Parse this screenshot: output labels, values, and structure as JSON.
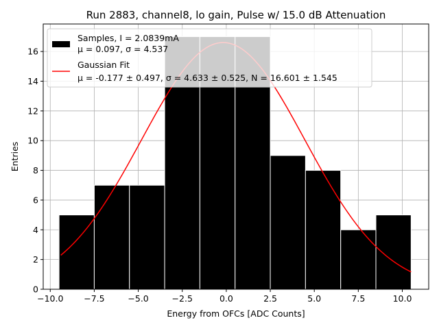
{
  "chart_data": {
    "type": "bar",
    "title": "Run 2883, channel8, lo gain, Pulse w/ 15.0 dB Attenuation",
    "xlabel": "Energy from OFCs [ADC Counts]",
    "ylabel": "Entries",
    "xlim": [
      -10.4,
      11.5
    ],
    "ylim": [
      0,
      17.85
    ],
    "xticks": [
      -10,
      -7.5,
      -5,
      -2.5,
      0,
      2.5,
      5,
      7.5,
      10
    ],
    "xtick_labels": [
      "−10.0",
      "−7.5",
      "−5.0",
      "−2.5",
      "0.0",
      "2.5",
      "5.0",
      "7.5",
      "10.0"
    ],
    "yticks": [
      0,
      2,
      4,
      6,
      8,
      10,
      12,
      14,
      16
    ],
    "ytick_labels": [
      "0",
      "2",
      "4",
      "6",
      "8",
      "10",
      "12",
      "14",
      "16"
    ],
    "grid": true,
    "legend_position": "top-left",
    "bins": [
      {
        "x0": -9.5,
        "x1": -7.5,
        "count": 5
      },
      {
        "x0": -7.5,
        "x1": -5.5,
        "count": 7
      },
      {
        "x0": -5.5,
        "x1": -3.5,
        "count": 7
      },
      {
        "x0": -3.5,
        "x1": -1.5,
        "count": 17
      },
      {
        "x0": -1.5,
        "x1": 0.5,
        "count": 17
      },
      {
        "x0": 0.5,
        "x1": 2.5,
        "count": 17
      },
      {
        "x0": 2.5,
        "x1": 4.5,
        "count": 9
      },
      {
        "x0": 4.5,
        "x1": 6.5,
        "count": 8
      },
      {
        "x0": 6.5,
        "x1": 8.5,
        "count": 4
      },
      {
        "x0": 8.5,
        "x1": 10.5,
        "count": 5
      }
    ],
    "series": [
      {
        "name": "Samples, I = 2.0839mA",
        "kind": "histogram",
        "color": "#000000"
      },
      {
        "name": "Gaussian Fit",
        "kind": "line",
        "color": "#ff0000",
        "mu": -0.177,
        "sigma": 4.633,
        "N": 16.601,
        "x_range": [
          -9.4,
          10.5
        ]
      }
    ],
    "legend": {
      "samples_line1": "Samples, I = 2.0839mA",
      "samples_line2": "μ = 0.097, σ = 4.537",
      "fit_line1": "Gaussian Fit",
      "fit_line2": "μ = -0.177 ± 0.497, σ = 4.633 ± 0.525, N = 16.601 ± 1.545"
    }
  },
  "colors": {
    "bar": "#000000",
    "bar_edge": "#ffffff",
    "fit": "#ff0000",
    "grid": "#b0b0b0"
  }
}
